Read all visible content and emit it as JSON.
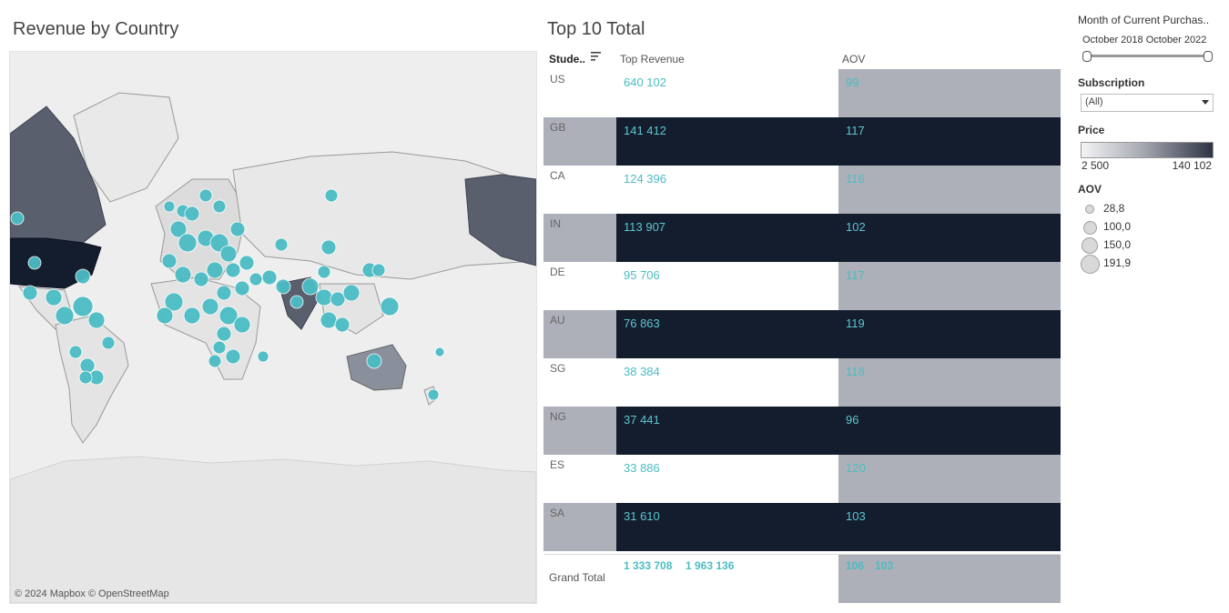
{
  "map_title": "Revenue by Country",
  "map_attribution": "© 2024 Mapbox © OpenStreetMap",
  "table": {
    "title": "Top 10 Total",
    "headers": {
      "student": "Stude..",
      "revenue": "Top Revenue",
      "aov": "AOV"
    },
    "rows": [
      {
        "country": "US",
        "revenue": "640 102",
        "aov": "99"
      },
      {
        "country": "GB",
        "revenue": "141 412",
        "aov": "117"
      },
      {
        "country": "CA",
        "revenue": "124 396",
        "aov": "116"
      },
      {
        "country": "IN",
        "revenue": "113 907",
        "aov": "102"
      },
      {
        "country": "DE",
        "revenue": "95 706",
        "aov": "117"
      },
      {
        "country": "AU",
        "revenue": "76 863",
        "aov": "119"
      },
      {
        "country": "SG",
        "revenue": "38 384",
        "aov": "118"
      },
      {
        "country": "NG",
        "revenue": "37 441",
        "aov": "96"
      },
      {
        "country": "ES",
        "revenue": "33 886",
        "aov": "120"
      },
      {
        "country": "SA",
        "revenue": "31 610",
        "aov": "103"
      }
    ],
    "grand_total": {
      "label": "Grand Total",
      "revenue_a": "1 333 708",
      "revenue_b": "1 963 136",
      "aov_a": "106",
      "aov_b": "103"
    }
  },
  "filters": {
    "month": {
      "title": "Month of Current Purchas..",
      "range_text": "October 2018 October 2022"
    },
    "subscription": {
      "title": "Subscription",
      "selected": "(All)"
    },
    "price": {
      "title": "Price",
      "min_label": "2 500",
      "max_label": "140 102"
    },
    "aov_legend": {
      "title": "AOV",
      "items": [
        "28,8",
        "100,0",
        "150,0",
        "191,9"
      ]
    }
  },
  "colors": {
    "accent_teal": "#4bbcc4",
    "dark_band": "#141d2e",
    "mid_grey": "#adb0b8"
  }
}
